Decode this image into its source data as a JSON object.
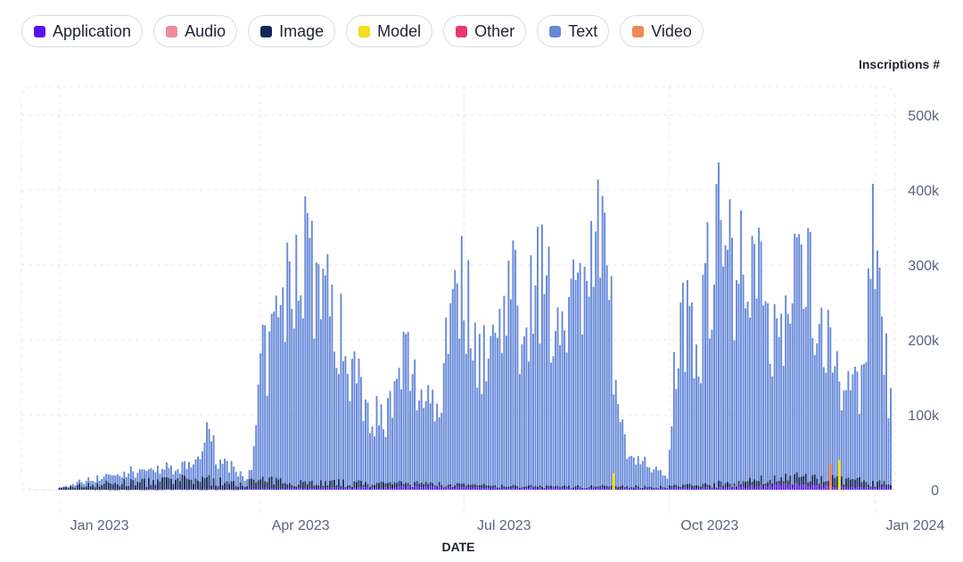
{
  "chart_data": {
    "type": "bar",
    "stacked": true,
    "title": "",
    "xlabel": "DATE",
    "ylabel": "Inscriptions #",
    "x_range": [
      "2022-12-15",
      "2024-01-10"
    ],
    "ylim": [
      0,
      500000
    ],
    "y_ticks": [
      {
        "value": 0,
        "label": "0"
      },
      {
        "value": 100000,
        "label": "100k"
      },
      {
        "value": 200000,
        "label": "200k"
      },
      {
        "value": 300000,
        "label": "300k"
      },
      {
        "value": 400000,
        "label": "400k"
      },
      {
        "value": 500000,
        "label": "500k"
      }
    ],
    "x_ticks": [
      {
        "date": "2023-01-01",
        "label": "Jan 2023"
      },
      {
        "date": "2023-04-01",
        "label": "Apr 2023"
      },
      {
        "date": "2023-07-01",
        "label": "Jul 2023"
      },
      {
        "date": "2023-10-01",
        "label": "Oct 2023"
      },
      {
        "date": "2024-01-01",
        "label": "Jan 2024"
      }
    ],
    "grid": true,
    "legend_position": "top-left",
    "legend": [
      {
        "name": "Application",
        "color": "#5b12f0"
      },
      {
        "name": "Audio",
        "color": "#f28a9a"
      },
      {
        "name": "Image",
        "color": "#13285a"
      },
      {
        "name": "Model",
        "color": "#f4dd1c"
      },
      {
        "name": "Other",
        "color": "#e8376a"
      },
      {
        "name": "Text",
        "color": "#6688d8"
      },
      {
        "name": "Video",
        "color": "#ee8a55"
      }
    ],
    "series_points": {
      "Text": [
        [
          "2023-01-01",
          0
        ],
        [
          "2023-01-10",
          5000
        ],
        [
          "2023-01-20",
          10000
        ],
        [
          "2023-02-01",
          15000
        ],
        [
          "2023-02-10",
          20000
        ],
        [
          "2023-02-25",
          15000
        ],
        [
          "2023-03-05",
          35000
        ],
        [
          "2023-03-08",
          70000
        ],
        [
          "2023-03-15",
          30000
        ],
        [
          "2023-03-28",
          10000
        ],
        [
          "2023-04-01",
          170000
        ],
        [
          "2023-04-05",
          200000
        ],
        [
          "2023-04-10",
          260000
        ],
        [
          "2023-04-15",
          320000
        ],
        [
          "2023-04-20",
          390000
        ],
        [
          "2023-04-25",
          340000
        ],
        [
          "2023-05-01",
          280000
        ],
        [
          "2023-05-05",
          250000
        ],
        [
          "2023-05-10",
          200000
        ],
        [
          "2023-05-15",
          160000
        ],
        [
          "2023-05-20",
          120000
        ],
        [
          "2023-05-25",
          100000
        ],
        [
          "2023-06-01",
          130000
        ],
        [
          "2023-06-05",
          210000
        ],
        [
          "2023-06-10",
          140000
        ],
        [
          "2023-06-15",
          150000
        ],
        [
          "2023-06-20",
          110000
        ],
        [
          "2023-06-25",
          330000
        ],
        [
          "2023-07-01",
          300000
        ],
        [
          "2023-07-05",
          250000
        ],
        [
          "2023-07-10",
          200000
        ],
        [
          "2023-07-15",
          220000
        ],
        [
          "2023-07-20",
          340000
        ],
        [
          "2023-07-25",
          260000
        ],
        [
          "2023-08-01",
          310000
        ],
        [
          "2023-08-05",
          350000
        ],
        [
          "2023-08-10",
          230000
        ],
        [
          "2023-08-15",
          330000
        ],
        [
          "2023-08-20",
          280000
        ],
        [
          "2023-08-25",
          360000
        ],
        [
          "2023-08-30",
          380000
        ],
        [
          "2023-09-05",
          280000
        ],
        [
          "2023-09-08",
          100000
        ],
        [
          "2023-09-12",
          60000
        ],
        [
          "2023-09-18",
          40000
        ],
        [
          "2023-09-25",
          25000
        ],
        [
          "2023-09-30",
          20000
        ],
        [
          "2023-10-03",
          180000
        ],
        [
          "2023-10-07",
          260000
        ],
        [
          "2023-10-10",
          300000
        ],
        [
          "2023-10-14",
          220000
        ],
        [
          "2023-10-18",
          320000
        ],
        [
          "2023-10-22",
          420000
        ],
        [
          "2023-10-26",
          370000
        ],
        [
          "2023-11-01",
          330000
        ],
        [
          "2023-11-05",
          400000
        ],
        [
          "2023-11-10",
          300000
        ],
        [
          "2023-11-15",
          250000
        ],
        [
          "2023-11-20",
          230000
        ],
        [
          "2023-11-25",
          300000
        ],
        [
          "2023-11-30",
          340000
        ],
        [
          "2023-12-05",
          290000
        ],
        [
          "2023-12-10",
          210000
        ],
        [
          "2023-12-15",
          180000
        ],
        [
          "2023-12-20",
          130000
        ],
        [
          "2023-12-26",
          140000
        ],
        [
          "2023-12-30",
          420000
        ],
        [
          "2024-01-03",
          250000
        ],
        [
          "2024-01-08",
          130000
        ]
      ],
      "Image": [
        [
          "2023-01-01",
          2000
        ],
        [
          "2023-01-15",
          8000
        ],
        [
          "2023-02-01",
          10000
        ],
        [
          "2023-02-20",
          12000
        ],
        [
          "2023-03-05",
          15000
        ],
        [
          "2023-03-20",
          8000
        ],
        [
          "2023-04-01",
          12000
        ],
        [
          "2023-05-01",
          8000
        ],
        [
          "2023-06-01",
          6000
        ],
        [
          "2023-07-01",
          4000
        ],
        [
          "2023-08-01",
          3000
        ],
        [
          "2023-09-01",
          3000
        ],
        [
          "2023-10-01",
          3000
        ],
        [
          "2023-11-01",
          8000
        ],
        [
          "2023-12-01",
          12000
        ],
        [
          "2023-12-25",
          10000
        ],
        [
          "2024-01-08",
          5000
        ]
      ],
      "Application": [
        [
          "2023-01-01",
          0
        ],
        [
          "2023-04-20",
          1500
        ],
        [
          "2023-06-20",
          4000
        ],
        [
          "2023-07-10",
          2000
        ],
        [
          "2023-10-20",
          2000
        ],
        [
          "2023-11-25",
          6000
        ],
        [
          "2023-12-25",
          3000
        ]
      ]
    },
    "annotations": [
      {
        "series": "Video",
        "date": "2023-12-12",
        "value": 35000
      },
      {
        "series": "Model",
        "date": "2023-12-16",
        "value": 40000
      },
      {
        "series": "Model",
        "date": "2023-09-06",
        "value": 22000
      }
    ]
  }
}
